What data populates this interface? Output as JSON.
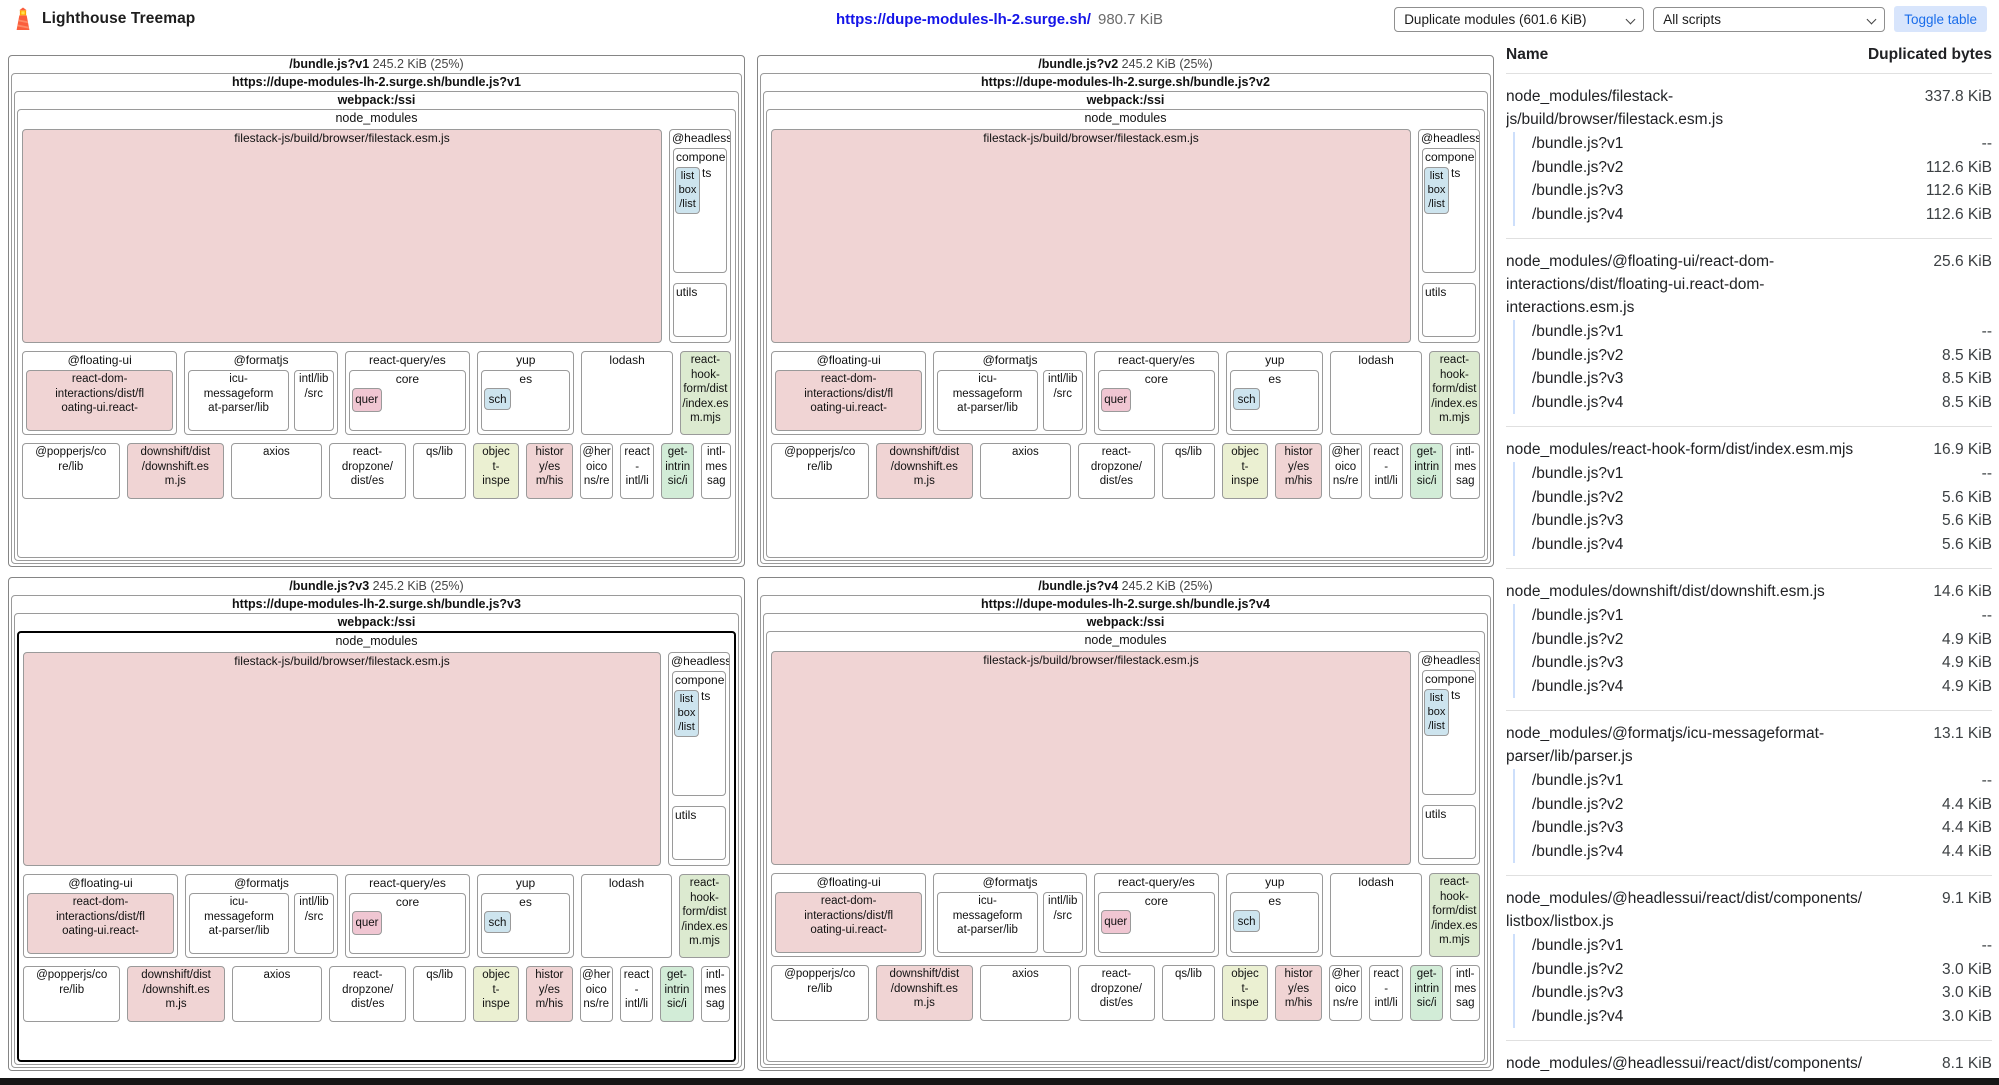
{
  "header": {
    "app_title": "Lighthouse Treemap",
    "url": "https://dupe-modules-lh-2.surge.sh/",
    "total_size": "980.7 KiB",
    "module_select": "Duplicate modules (601.6 KiB)",
    "script_select": "All scripts",
    "toggle_button": "Toggle table"
  },
  "colors": {
    "pink": "#f0d4d4",
    "pink_small": "#f0c6d2",
    "blue": "#cde4ee",
    "green": "#dcead0",
    "green2": "#d2ecd7",
    "yellow": "#ebf0d2",
    "link_blue": "#1414e8",
    "button_bg": "#d8e5fc",
    "button_text": "#1a6dea",
    "indent_line": "#cddffb",
    "highlight": "#000000"
  },
  "panels": [
    {
      "name": "/bundle.js?v1",
      "size": "245.2 KiB (25%)",
      "url": "https://dupe-modules-lh-2.surge.sh/bundle.js?v1",
      "highlighted": false
    },
    {
      "name": "/bundle.js?v2",
      "size": "245.2 KiB (25%)",
      "url": "https://dupe-modules-lh-2.surge.sh/bundle.js?v2",
      "highlighted": false
    },
    {
      "name": "/bundle.js?v3",
      "size": "245.2 KiB (25%)",
      "url": "https://dupe-modules-lh-2.surge.sh/bundle.js?v3",
      "highlighted": true
    },
    {
      "name": "/bundle.js?v4",
      "size": "245.2 KiB (25%)",
      "url": "https://dupe-modules-lh-2.surge.sh/bundle.js?v4",
      "highlighted": false
    }
  ],
  "tree": {
    "webpack_label": "webpack:/ssi",
    "node_modules_label": "node_modules",
    "filestack_label": "filestack-js/build/browser/filestack.esm.js",
    "headless": {
      "label": "@headless",
      "components_top": "compone",
      "components_side": "ts",
      "listbox_text": "list\nbox\n/list",
      "utils_label": "utils"
    },
    "floating": {
      "label": "@floating-ui",
      "child_text": "react-dom-\ninteractions/dist/fl\noating-ui.react-"
    },
    "formatjs": {
      "label": "@formatjs",
      "icu_text": "icu-\nmessageform\nat-parser/lib",
      "intl_text": "intl/lib\n/src"
    },
    "react_query": {
      "label": "react-query/es",
      "core_label": "core",
      "quer_label": "quer"
    },
    "yup": {
      "label": "yup",
      "es_label": "es",
      "sch_label": "sch"
    },
    "lodash_label": "lodash",
    "rhf_text": "react-\nhook-\nform/dist\n/index.es\nm.mjs",
    "row3": [
      {
        "text": "@popperjs/co\nre/lib",
        "color": "white"
      },
      {
        "text": "downshift/dist\n/downshift.es\nm.js",
        "color": "pink"
      },
      {
        "text": "axios",
        "color": "white"
      },
      {
        "text": "react-\ndropzone/\ndist/es",
        "color": "white"
      },
      {
        "text": "qs/lib",
        "color": "white"
      },
      {
        "text": "objec\nt-\ninspe",
        "color": "yellow"
      },
      {
        "text": "histor\ny/es\nm/his",
        "color": "pink"
      },
      {
        "text": "@her\noico\nns/re",
        "color": "white"
      },
      {
        "text": "react\n-\nintl/li",
        "color": "white"
      },
      {
        "text": "get-\nintrin\nsic/i",
        "color": "green2"
      },
      {
        "text": "intl-\nmes\nsag",
        "color": "white"
      }
    ]
  },
  "table": {
    "name_header": "Name",
    "bytes_header": "Duplicated bytes",
    "groups": [
      {
        "name": "node_modules/filestack-js/build/browser/filestack.esm.js",
        "total": "337.8 KiB",
        "rows": [
          {
            "label": "/bundle.js?v1",
            "value": "--"
          },
          {
            "label": "/bundle.js?v2",
            "value": "112.6 KiB"
          },
          {
            "label": "/bundle.js?v3",
            "value": "112.6 KiB"
          },
          {
            "label": "/bundle.js?v4",
            "value": "112.6 KiB"
          }
        ]
      },
      {
        "name": "node_modules/@floating-ui/react-dom-interactions/dist/floating-ui.react-dom-interactions.esm.js",
        "total": "25.6 KiB",
        "rows": [
          {
            "label": "/bundle.js?v1",
            "value": "--"
          },
          {
            "label": "/bundle.js?v2",
            "value": "8.5 KiB"
          },
          {
            "label": "/bundle.js?v3",
            "value": "8.5 KiB"
          },
          {
            "label": "/bundle.js?v4",
            "value": "8.5 KiB"
          }
        ]
      },
      {
        "name": "node_modules/react-hook-form/dist/index.esm.mjs",
        "total": "16.9 KiB",
        "rows": [
          {
            "label": "/bundle.js?v1",
            "value": "--"
          },
          {
            "label": "/bundle.js?v2",
            "value": "5.6 KiB"
          },
          {
            "label": "/bundle.js?v3",
            "value": "5.6 KiB"
          },
          {
            "label": "/bundle.js?v4",
            "value": "5.6 KiB"
          }
        ]
      },
      {
        "name": "node_modules/downshift/dist/downshift.esm.js",
        "total": "14.6 KiB",
        "rows": [
          {
            "label": "/bundle.js?v1",
            "value": "--"
          },
          {
            "label": "/bundle.js?v2",
            "value": "4.9 KiB"
          },
          {
            "label": "/bundle.js?v3",
            "value": "4.9 KiB"
          },
          {
            "label": "/bundle.js?v4",
            "value": "4.9 KiB"
          }
        ]
      },
      {
        "name": "node_modules/@formatjs/icu-messageformat-parser/lib/parser.js",
        "total": "13.1 KiB",
        "rows": [
          {
            "label": "/bundle.js?v1",
            "value": "--"
          },
          {
            "label": "/bundle.js?v2",
            "value": "4.4 KiB"
          },
          {
            "label": "/bundle.js?v3",
            "value": "4.4 KiB"
          },
          {
            "label": "/bundle.js?v4",
            "value": "4.4 KiB"
          }
        ]
      },
      {
        "name": "node_modules/@headlessui/react/dist/components/listbox/listbox.js",
        "total": "9.1 KiB",
        "rows": [
          {
            "label": "/bundle.js?v1",
            "value": "--"
          },
          {
            "label": "/bundle.js?v2",
            "value": "3.0 KiB"
          },
          {
            "label": "/bundle.js?v3",
            "value": "3.0 KiB"
          },
          {
            "label": "/bundle.js?v4",
            "value": "3.0 KiB"
          }
        ]
      }
    ],
    "partial_row": {
      "name": "node_modules/@headlessui/react/dist/components/menu/menu.js",
      "value": "8.1 KiB"
    }
  }
}
